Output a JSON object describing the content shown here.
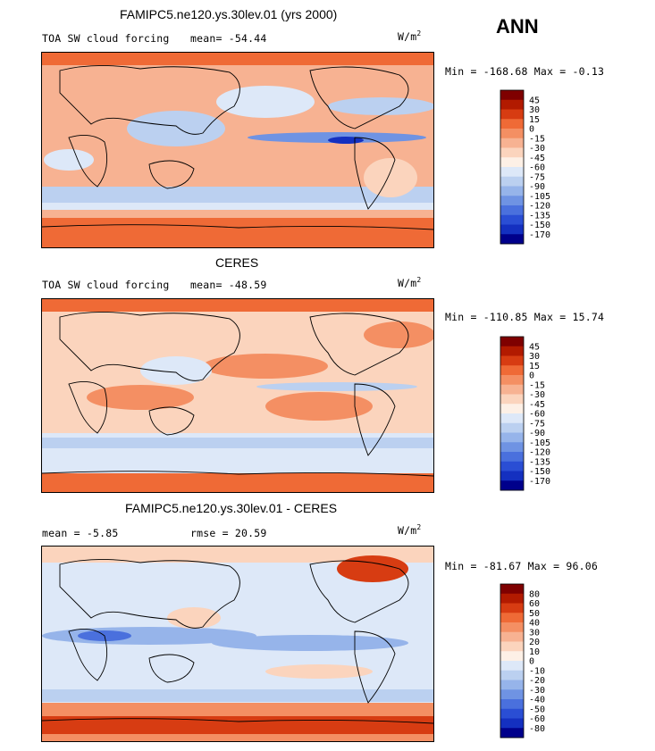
{
  "season": "ANN",
  "units": "W/m",
  "units_sup": "2",
  "panels": [
    {
      "title": "FAMIPC5.ne120.ys.30lev.01 (yrs 2000)",
      "subtitle": "TOA SW cloud forcing",
      "stat_label": "mean=",
      "stat_value": "-54.44",
      "minmax": "Min = -168.68 Max =  -0.13"
    },
    {
      "title": "CERES",
      "subtitle": "TOA SW cloud forcing",
      "stat_label": "mean=",
      "stat_value": "-48.59",
      "minmax": "Min = -110.85 Max =  15.74"
    },
    {
      "title": "FAMIPC5.ne120.ys.30lev.01 - CERES",
      "subtitle": "",
      "stat_label": "mean =",
      "stat_value": "-5.85",
      "rmse_label": "rmse =",
      "rmse_value": "20.59",
      "minmax": "Min = -81.67 Max =  96.06"
    }
  ],
  "chart_data": [
    {
      "type": "heatmap",
      "title": "FAMIPC5.ne120.ys.30lev.01 (yrs 2000)",
      "variable": "TOA SW cloud forcing",
      "units": "W/m2",
      "mean": -54.44,
      "min": -168.68,
      "max": -0.13,
      "colorbar_levels": [
        "45",
        "30",
        "15",
        "0",
        "-15",
        "-30",
        "-45",
        "-60",
        "-75",
        "-90",
        "-105",
        "-120",
        "-135",
        "-150",
        "-170"
      ],
      "colorbar_colors": [
        "#7f0000",
        "#b21a00",
        "#d73c12",
        "#ef6a36",
        "#f48f63",
        "#f7b292",
        "#fbd4bd",
        "#fdf0e6",
        "#dde8f8",
        "#bbd0f0",
        "#96b4ea",
        "#6f93e3",
        "#4a70dd",
        "#2a4ed4",
        "#1430c0",
        "#00008b"
      ]
    },
    {
      "type": "heatmap",
      "title": "CERES",
      "variable": "TOA SW cloud forcing",
      "units": "W/m2",
      "mean": -48.59,
      "min": -110.85,
      "max": 15.74,
      "colorbar_levels": [
        "45",
        "30",
        "15",
        "0",
        "-15",
        "-30",
        "-45",
        "-60",
        "-75",
        "-90",
        "-105",
        "-120",
        "-135",
        "-150",
        "-170"
      ],
      "colorbar_colors": [
        "#7f0000",
        "#b21a00",
        "#d73c12",
        "#ef6a36",
        "#f48f63",
        "#f7b292",
        "#fbd4bd",
        "#fdf0e6",
        "#dde8f8",
        "#bbd0f0",
        "#96b4ea",
        "#6f93e3",
        "#4a70dd",
        "#2a4ed4",
        "#1430c0",
        "#00008b"
      ]
    },
    {
      "type": "heatmap",
      "title": "FAMIPC5.ne120.ys.30lev.01 - CERES",
      "units": "W/m2",
      "mean": -5.85,
      "rmse": 20.59,
      "min": -81.67,
      "max": 96.06,
      "colorbar_levels": [
        "80",
        "60",
        "50",
        "40",
        "30",
        "20",
        "10",
        "0",
        "-10",
        "-20",
        "-30",
        "-40",
        "-50",
        "-60",
        "-80"
      ],
      "colorbar_colors": [
        "#7f0000",
        "#b21a00",
        "#d73c12",
        "#ef6a36",
        "#f48f63",
        "#f7b292",
        "#fbd4bd",
        "#fdf0e6",
        "#dde8f8",
        "#bbd0f0",
        "#96b4ea",
        "#6f93e3",
        "#4a70dd",
        "#2a4ed4",
        "#1430c0",
        "#00008b"
      ]
    }
  ]
}
